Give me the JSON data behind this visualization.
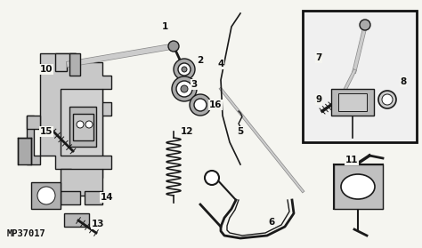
{
  "bg_color": "#ffffff",
  "line_color": "#1a1a1a",
  "label_color": "#111111",
  "watermark": "MP37017",
  "fig_width": 4.74,
  "fig_height": 2.79,
  "dpi": 100
}
